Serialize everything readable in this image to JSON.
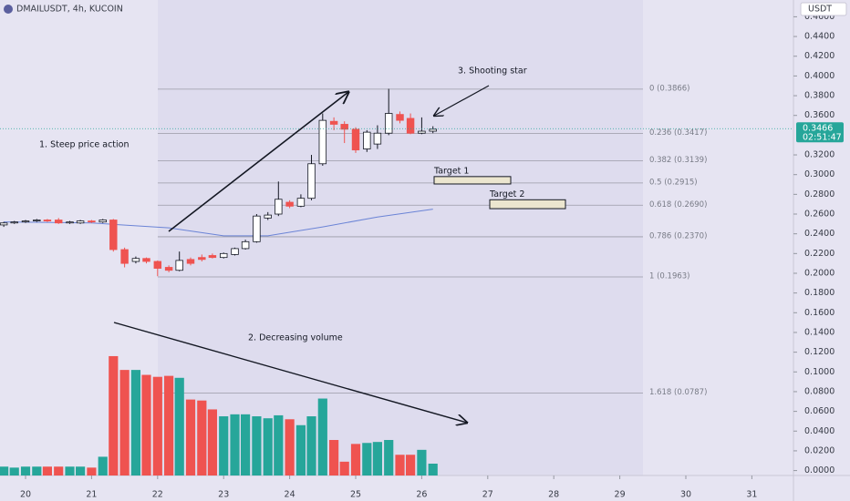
{
  "chart_data": {
    "type": "candlestick",
    "title": "DMAILUSDT, 4h, KUCOIN",
    "currency": "USDT",
    "last_price": 0.3466,
    "countdown": "02:51:47",
    "xlim": [
      19.613,
      31.63
    ],
    "xticks": [
      20,
      21,
      22,
      23,
      24,
      25,
      26,
      27,
      28,
      29,
      30,
      31
    ],
    "ylim": [
      -0.005,
      0.477
    ],
    "yticks": [
      {
        "value": 0.46,
        "label": "0.4600"
      },
      {
        "value": 0.44,
        "label": "0.4400"
      },
      {
        "value": 0.42,
        "label": "0.4200"
      },
      {
        "value": 0.4,
        "label": "0.4000"
      },
      {
        "value": 0.38,
        "label": "0.3800"
      },
      {
        "value": 0.36,
        "label": "0.3600"
      },
      {
        "value": 0.32,
        "label": "0.3200"
      },
      {
        "value": 0.3,
        "label": "0.3000"
      },
      {
        "value": 0.28,
        "label": "0.2800"
      },
      {
        "value": 0.26,
        "label": "0.2600"
      },
      {
        "value": 0.24,
        "label": "0.2400"
      },
      {
        "value": 0.22,
        "label": "0.2200"
      },
      {
        "value": 0.2,
        "label": "0.2000"
      },
      {
        "value": 0.18,
        "label": "0.1800"
      },
      {
        "value": 0.16,
        "label": "0.1600"
      },
      {
        "value": 0.14,
        "label": "0.1400"
      },
      {
        "value": 0.12,
        "label": "0.1200"
      },
      {
        "value": 0.1,
        "label": "0.1000"
      },
      {
        "value": 0.08,
        "label": "0.0800"
      },
      {
        "value": 0.06,
        "label": "0.0600"
      },
      {
        "value": 0.04,
        "label": "0.0400"
      },
      {
        "value": 0.02,
        "label": "0.0200"
      },
      {
        "value": 0,
        "label": "0.0000"
      }
    ],
    "up_color": "#26a69a",
    "down_color": "#ef5350",
    "candles": {
      "x": [
        19.67,
        19.83,
        20.0,
        20.17,
        20.33,
        20.5,
        20.67,
        20.83,
        21.0,
        21.17,
        21.33,
        21.5,
        21.67,
        21.83,
        22.0,
        22.17,
        22.33,
        22.5,
        22.67,
        22.83,
        23.0,
        23.17,
        23.33,
        23.5,
        23.67,
        23.83,
        24.0,
        24.17,
        24.33,
        24.5,
        24.67,
        24.83,
        25.0,
        25.17,
        25.33,
        25.5,
        25.67,
        25.83,
        26.0,
        26.17
      ],
      "open": [
        0.249,
        0.251,
        0.252,
        0.253,
        0.254,
        0.254,
        0.251,
        0.251,
        0.253,
        0.252,
        0.254,
        0.224,
        0.212,
        0.215,
        0.212,
        0.206,
        0.203,
        0.214,
        0.216,
        0.218,
        0.216,
        0.219,
        0.225,
        0.232,
        0.256,
        0.26,
        0.272,
        0.268,
        0.276,
        0.311,
        0.354,
        0.351,
        0.346,
        0.326,
        0.331,
        0.342,
        0.361,
        0.357,
        0.342,
        0.344
      ],
      "high": [
        0.252,
        0.253,
        0.254,
        0.255,
        0.255,
        0.256,
        0.253,
        0.254,
        0.254,
        0.255,
        0.255,
        0.226,
        0.217,
        0.216,
        0.213,
        0.208,
        0.222,
        0.216,
        0.219,
        0.22,
        0.221,
        0.226,
        0.234,
        0.26,
        0.262,
        0.293,
        0.274,
        0.28,
        0.32,
        0.362,
        0.358,
        0.354,
        0.348,
        0.345,
        0.35,
        0.387,
        0.364,
        0.362,
        0.358,
        0.349
      ],
      "low": [
        0.247,
        0.25,
        0.251,
        0.252,
        0.252,
        0.25,
        0.25,
        0.25,
        0.251,
        0.251,
        0.222,
        0.206,
        0.21,
        0.21,
        0.197,
        0.201,
        0.202,
        0.208,
        0.212,
        0.215,
        0.215,
        0.218,
        0.224,
        0.231,
        0.254,
        0.258,
        0.266,
        0.267,
        0.274,
        0.309,
        0.345,
        0.332,
        0.322,
        0.323,
        0.326,
        0.34,
        0.352,
        0.341,
        0.341,
        0.342
      ],
      "close": [
        0.251,
        0.252,
        0.253,
        0.254,
        0.253,
        0.251,
        0.252,
        0.253,
        0.252,
        0.254,
        0.224,
        0.21,
        0.215,
        0.212,
        0.205,
        0.203,
        0.213,
        0.21,
        0.214,
        0.216,
        0.22,
        0.225,
        0.232,
        0.258,
        0.259,
        0.275,
        0.268,
        0.276,
        0.311,
        0.355,
        0.351,
        0.346,
        0.325,
        0.343,
        0.342,
        0.362,
        0.355,
        0.342,
        0.344,
        0.346
      ]
    },
    "volume": [
      0.009,
      0.008,
      0.009,
      0.009,
      0.009,
      0.009,
      0.009,
      0.009,
      0.008,
      0.019,
      0.121,
      0.107,
      0.107,
      0.102,
      0.1,
      0.101,
      0.099,
      0.077,
      0.076,
      0.067,
      0.06,
      0.062,
      0.062,
      0.06,
      0.058,
      0.061,
      0.057,
      0.051,
      0.06,
      0.078,
      0.036,
      0.014,
      0.032,
      0.033,
      0.034,
      0.036,
      0.021,
      0.021,
      0.026,
      0.012
    ],
    "ma": {
      "color": "#6b84d6",
      "x": [
        19.67,
        21.0,
        22.17,
        23.0,
        23.67,
        24.5,
        25.33,
        26.17
      ],
      "values": [
        0.252,
        0.251,
        0.246,
        0.238,
        0.238,
        0.247,
        0.257,
        0.265
      ]
    },
    "fib_levels": [
      {
        "label": "0 (0.3866)",
        "value": 0.3866
      },
      {
        "label": "0.236 (0.3417)",
        "value": 0.3417
      },
      {
        "label": "0.382 (0.3139)",
        "value": 0.3139
      },
      {
        "label": "0.5 (0.2915)",
        "value": 0.2915
      },
      {
        "label": "0.618 (0.2690)",
        "value": 0.269
      },
      {
        "label": "0.786 (0.2370)",
        "value": 0.237
      },
      {
        "label": "1 (0.1963)",
        "value": 0.1963
      },
      {
        "label": "1.618 (0.0787)",
        "value": 0.0787
      }
    ],
    "targets": [
      {
        "label": "Target 1",
        "low": 0.2905,
        "high": 0.298
      },
      {
        "label": "Target 2",
        "low": 0.2655,
        "high": 0.2745
      }
    ],
    "annotations": [
      "1. Steep price action",
      "2. Decreasing volume",
      "3. Shooting star"
    ]
  }
}
